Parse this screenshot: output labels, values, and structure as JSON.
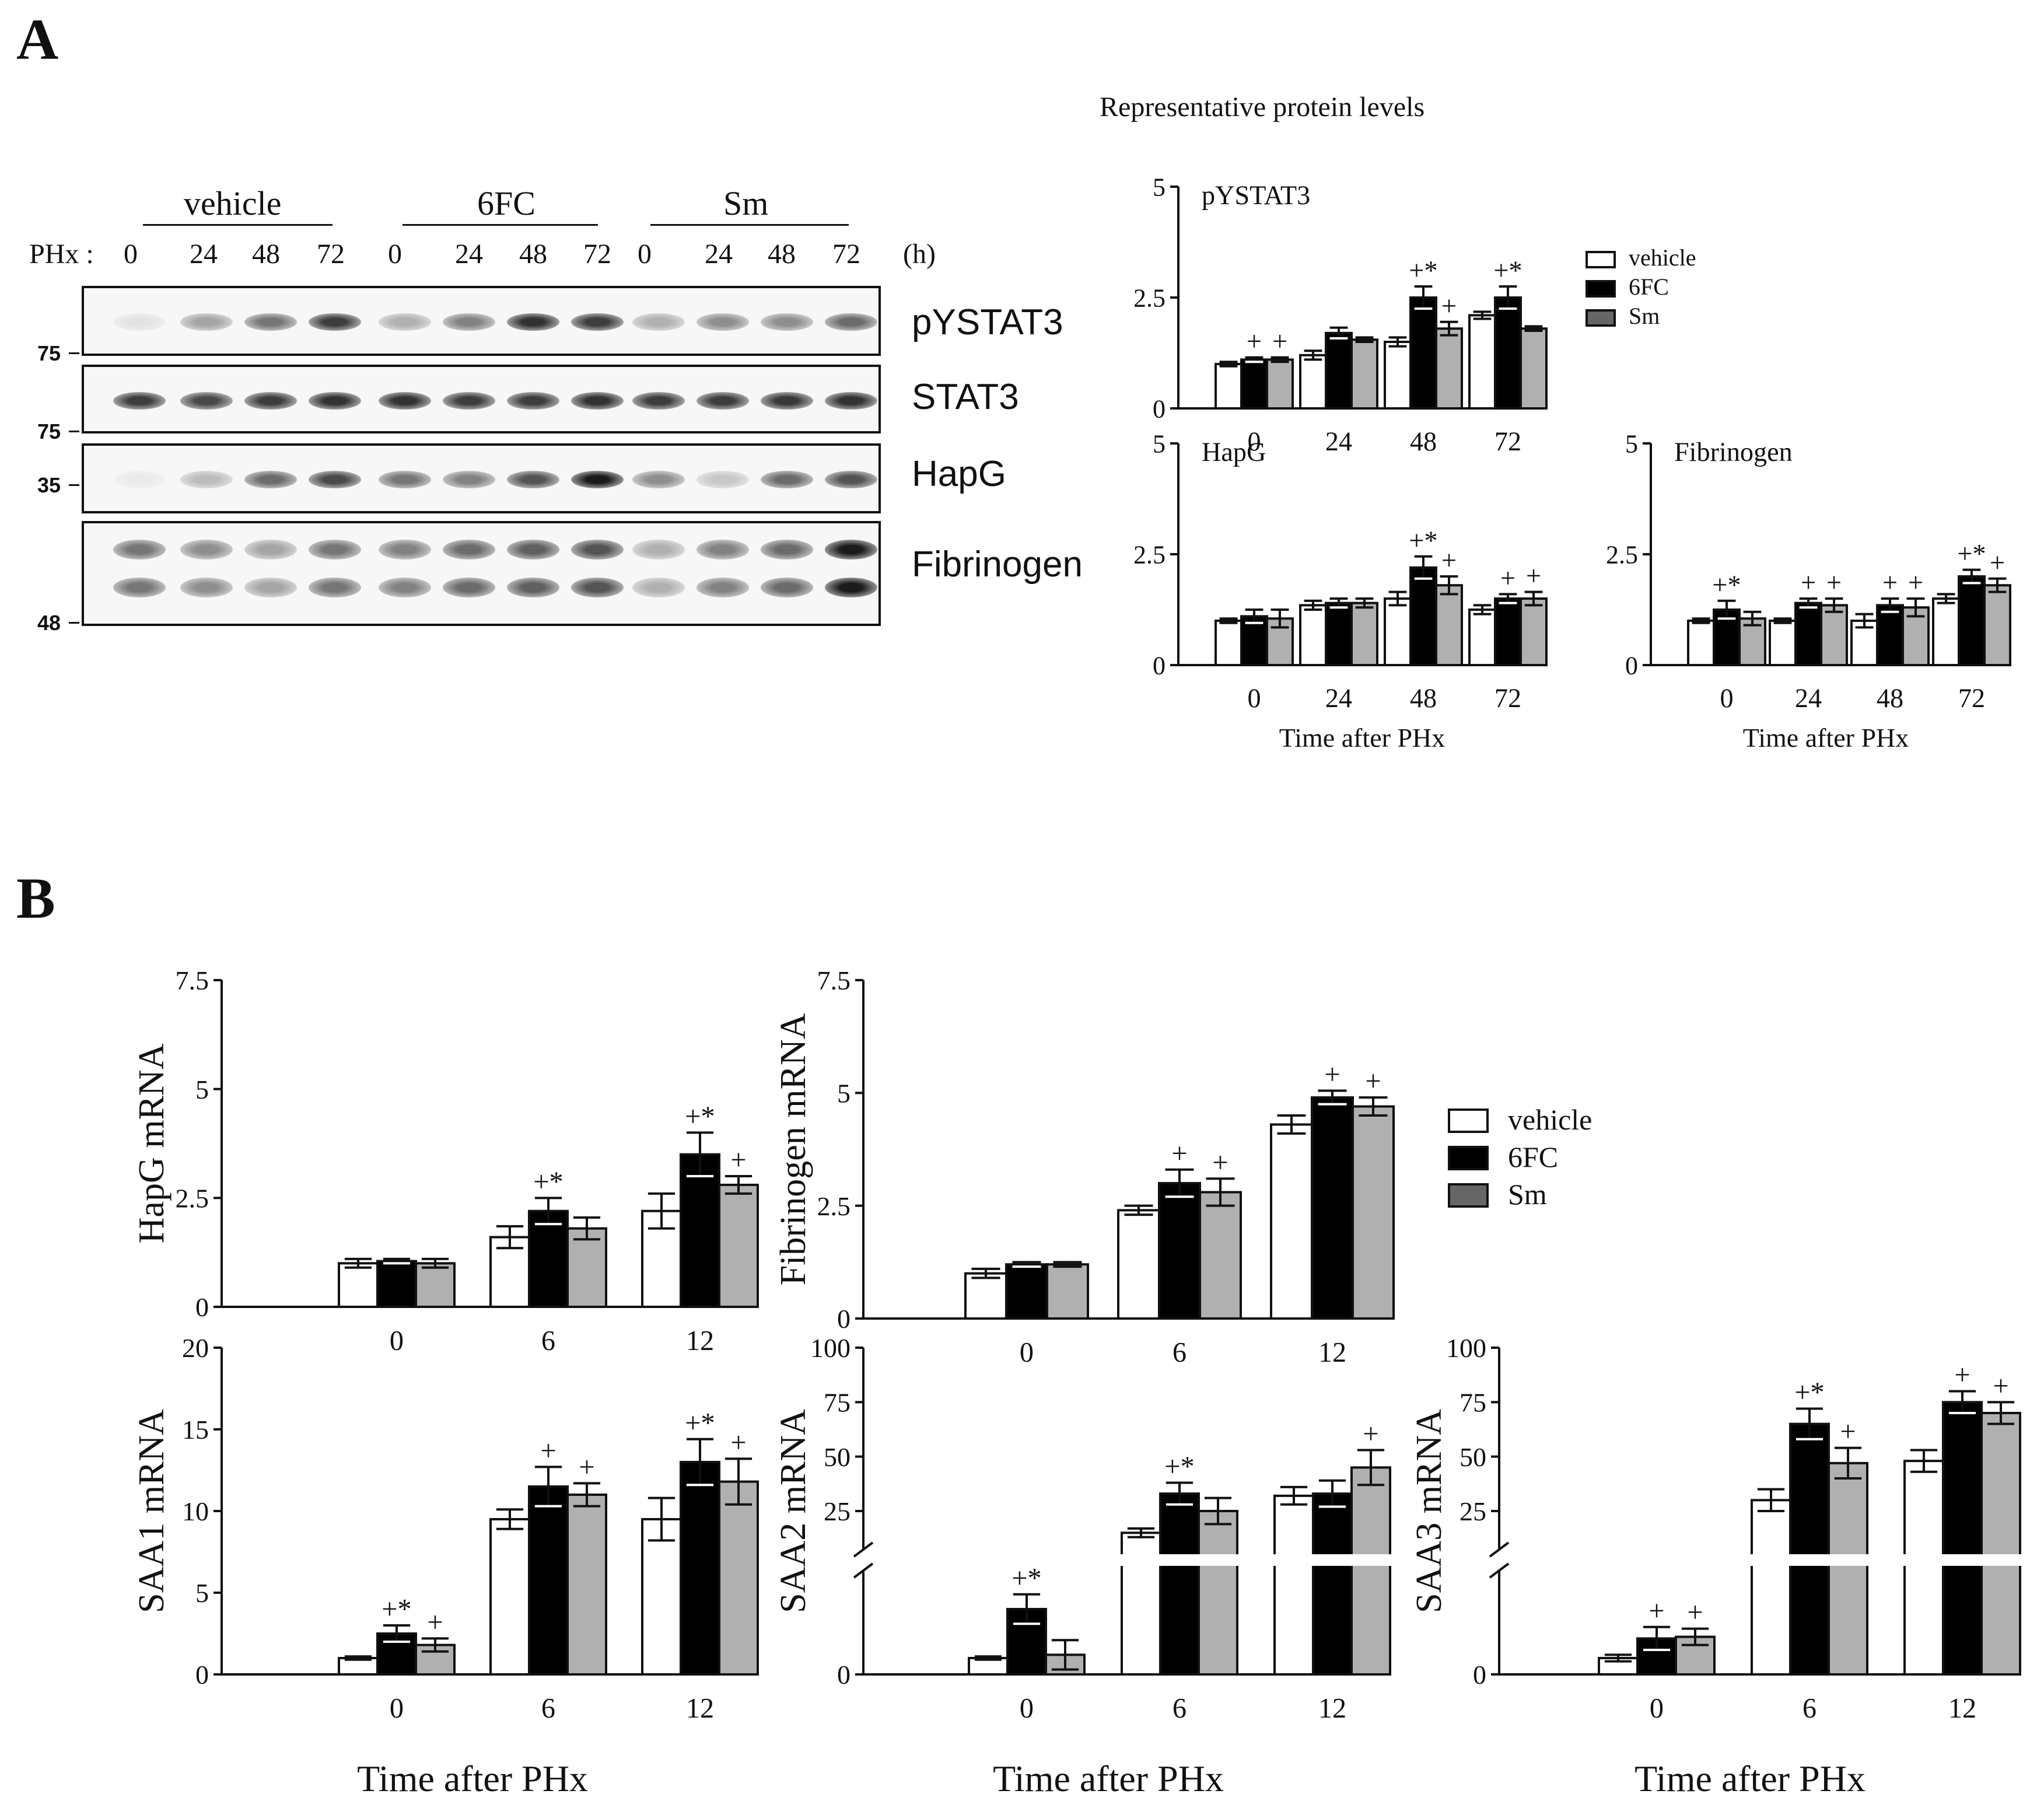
{
  "panel_a": {
    "label": "A",
    "rep_title": "Representative protein levels",
    "groups": [
      "vehicle",
      "6FC",
      "Sm"
    ],
    "phx_label": "PHx :",
    "times": [
      "0",
      "24",
      "48",
      "72"
    ],
    "time_unit": "(h)",
    "blots": [
      {
        "label": "pYSTAT3",
        "mw": "75"
      },
      {
        "label": "STAT3",
        "mw": "75"
      },
      {
        "label": "HapG",
        "mw": "35"
      },
      {
        "label": "Fibrinogen",
        "mw": "48"
      }
    ],
    "legend": [
      "vehicle",
      "6FC",
      "Sm"
    ]
  },
  "panel_b": {
    "label": "B",
    "legend": [
      "vehicle",
      "6FC",
      "Sm"
    ]
  },
  "colors": {
    "vehicle": "#ffffff",
    "6FC": "#000000",
    "Sm": "#b0b0b0",
    "axis": "#111111"
  },
  "chart_data": [
    {
      "id": "a_pystat3",
      "type": "bar",
      "title": "pYSTAT3",
      "categories": [
        "0",
        "24",
        "48",
        "72"
      ],
      "yticks": [
        "0",
        "2.5",
        "5"
      ],
      "ylim": [
        0,
        5
      ],
      "xlabel": "",
      "series": [
        {
          "name": "vehicle",
          "values": [
            1.0,
            1.2,
            1.5,
            2.1
          ],
          "err": [
            0.05,
            0.1,
            0.1,
            0.08
          ]
        },
        {
          "name": "6FC",
          "values": [
            1.1,
            1.7,
            2.5,
            2.5
          ],
          "err": [
            0.05,
            0.12,
            0.25,
            0.25
          ]
        },
        {
          "name": "Sm",
          "values": [
            1.1,
            1.55,
            1.8,
            1.8
          ],
          "err": [
            0.05,
            0.05,
            0.15,
            0.05
          ]
        }
      ],
      "annotations": [
        [
          "",
          "+",
          "+"
        ],
        [
          "",
          "",
          ""
        ],
        [
          "",
          "+*",
          "+"
        ],
        [
          "",
          "+*",
          ""
        ]
      ]
    },
    {
      "id": "a_hapg",
      "type": "bar",
      "title": "HapG",
      "categories": [
        "0",
        "24",
        "48",
        "72"
      ],
      "yticks": [
        "0",
        "2.5",
        "5"
      ],
      "ylim": [
        0,
        5
      ],
      "xlabel": "Time after PHx",
      "series": [
        {
          "name": "vehicle",
          "values": [
            1.0,
            1.35,
            1.5,
            1.25
          ],
          "err": [
            0.05,
            0.1,
            0.15,
            0.1
          ]
        },
        {
          "name": "6FC",
          "values": [
            1.1,
            1.4,
            2.2,
            1.5
          ],
          "err": [
            0.15,
            0.1,
            0.25,
            0.1
          ]
        },
        {
          "name": "Sm",
          "values": [
            1.05,
            1.4,
            1.8,
            1.5
          ],
          "err": [
            0.2,
            0.1,
            0.2,
            0.15
          ]
        }
      ],
      "annotations": [
        [
          "",
          "",
          ""
        ],
        [
          "",
          "",
          ""
        ],
        [
          "",
          "+*",
          "+"
        ],
        [
          "",
          "+",
          "+"
        ]
      ]
    },
    {
      "id": "a_fibrinogen",
      "type": "bar",
      "title": "Fibrinogen",
      "categories": [
        "0",
        "24",
        "48",
        "72"
      ],
      "yticks": [
        "0",
        "2.5",
        "5"
      ],
      "ylim": [
        0,
        5
      ],
      "xlabel": "Time after PHx",
      "series": [
        {
          "name": "vehicle",
          "values": [
            1.0,
            1.0,
            1.0,
            1.5
          ],
          "err": [
            0.05,
            0.05,
            0.15,
            0.1
          ]
        },
        {
          "name": "6FC",
          "values": [
            1.25,
            1.4,
            1.35,
            2.0
          ],
          "err": [
            0.2,
            0.1,
            0.15,
            0.15
          ]
        },
        {
          "name": "Sm",
          "values": [
            1.05,
            1.35,
            1.3,
            1.8
          ],
          "err": [
            0.15,
            0.15,
            0.2,
            0.15
          ]
        }
      ],
      "annotations": [
        [
          "",
          "+*",
          ""
        ],
        [
          "",
          "+",
          "+"
        ],
        [
          "",
          "+",
          "+"
        ],
        [
          "",
          "+*",
          "+"
        ]
      ]
    },
    {
      "id": "b_hapg",
      "type": "bar",
      "ylabel": "HapG mRNA",
      "categories": [
        "0",
        "6",
        "12"
      ],
      "yticks": [
        "0",
        "2.5",
        "5",
        "7.5"
      ],
      "ylim": [
        0,
        7.5
      ],
      "xlabel": "",
      "series": [
        {
          "name": "vehicle",
          "values": [
            1.0,
            1.6,
            2.2
          ],
          "err": [
            0.1,
            0.25,
            0.4
          ]
        },
        {
          "name": "6FC",
          "values": [
            1.05,
            2.2,
            3.5
          ],
          "err": [
            0.05,
            0.3,
            0.5
          ]
        },
        {
          "name": "Sm",
          "values": [
            1.0,
            1.8,
            2.8
          ],
          "err": [
            0.1,
            0.25,
            0.2
          ]
        }
      ],
      "annotations": [
        [
          "",
          "",
          ""
        ],
        [
          "",
          "+*",
          ""
        ],
        [
          "",
          "+*",
          "+"
        ]
      ]
    },
    {
      "id": "b_fibrinogen",
      "type": "bar",
      "ylabel": "Fibrinogen mRNA",
      "categories": [
        "0",
        "6",
        "12"
      ],
      "yticks": [
        "0",
        "2.5",
        "5",
        "7.5"
      ],
      "ylim": [
        0,
        7.5
      ],
      "xlabel": "",
      "series": [
        {
          "name": "vehicle",
          "values": [
            1.0,
            2.4,
            4.3
          ],
          "err": [
            0.1,
            0.1,
            0.2
          ]
        },
        {
          "name": "6FC",
          "values": [
            1.2,
            3.0,
            4.9
          ],
          "err": [
            0.05,
            0.3,
            0.15
          ]
        },
        {
          "name": "Sm",
          "values": [
            1.2,
            2.8,
            4.7
          ],
          "err": [
            0.05,
            0.3,
            0.2
          ]
        }
      ],
      "annotations": [
        [
          "",
          "",
          ""
        ],
        [
          "",
          "+",
          "+"
        ],
        [
          "",
          "+",
          "+"
        ]
      ]
    },
    {
      "id": "b_saa1",
      "type": "bar",
      "ylabel": "SAA1 mRNA",
      "categories": [
        "0",
        "6",
        "12"
      ],
      "yticks": [
        "0",
        "5",
        "10",
        "15",
        "20"
      ],
      "ylim": [
        0,
        20
      ],
      "xlabel": "Time after PHx",
      "series": [
        {
          "name": "vehicle",
          "values": [
            1.0,
            9.5,
            9.5
          ],
          "err": [
            0.1,
            0.6,
            1.3
          ]
        },
        {
          "name": "6FC",
          "values": [
            2.5,
            11.5,
            13.0
          ],
          "err": [
            0.5,
            1.2,
            1.4
          ]
        },
        {
          "name": "Sm",
          "values": [
            1.8,
            11.0,
            11.8
          ],
          "err": [
            0.4,
            0.7,
            1.4
          ]
        }
      ],
      "annotations": [
        [
          "",
          "+*",
          "+"
        ],
        [
          "",
          "+",
          "+"
        ],
        [
          "",
          "+*",
          "+"
        ]
      ]
    },
    {
      "id": "b_saa2",
      "type": "bar",
      "ylabel": "SAA2 mRNA",
      "categories": [
        "0",
        "6",
        "12"
      ],
      "yticks": [
        "0",
        "25",
        "50",
        "75",
        "100"
      ],
      "ylim": [
        0,
        100
      ],
      "axis_break": true,
      "xlabel": "Time after PHx",
      "series": [
        {
          "name": "vehicle",
          "values": [
            1.0,
            15,
            32
          ],
          "err": [
            0.1,
            2,
            4
          ]
        },
        {
          "name": "6FC",
          "values": [
            4.0,
            33,
            33
          ],
          "err": [
            0.9,
            5,
            6
          ]
        },
        {
          "name": "Sm",
          "values": [
            1.2,
            25,
            45
          ],
          "err": [
            0.9,
            6,
            8
          ]
        }
      ],
      "annotations": [
        [
          "",
          "+*",
          ""
        ],
        [
          "",
          "+*",
          ""
        ],
        [
          "",
          "",
          "+"
        ]
      ]
    },
    {
      "id": "b_saa3",
      "type": "bar",
      "ylabel": "SAA3 mRNA",
      "categories": [
        "0",
        "6",
        "12"
      ],
      "yticks": [
        "0",
        "25",
        "50",
        "75",
        "100"
      ],
      "ylim": [
        0,
        100
      ],
      "axis_break": true,
      "xlabel": "Time after PHx",
      "series": [
        {
          "name": "vehicle",
          "values": [
            1.0,
            30,
            48
          ],
          "err": [
            0.2,
            5,
            5
          ]
        },
        {
          "name": "6FC",
          "values": [
            2.2,
            65,
            75
          ],
          "err": [
            0.7,
            7,
            5
          ]
        },
        {
          "name": "Sm",
          "values": [
            2.3,
            47,
            70
          ],
          "err": [
            0.5,
            7,
            5
          ]
        }
      ],
      "annotations": [
        [
          "",
          "+",
          "+"
        ],
        [
          "",
          "+*",
          "+"
        ],
        [
          "",
          "+",
          "+"
        ]
      ]
    }
  ]
}
